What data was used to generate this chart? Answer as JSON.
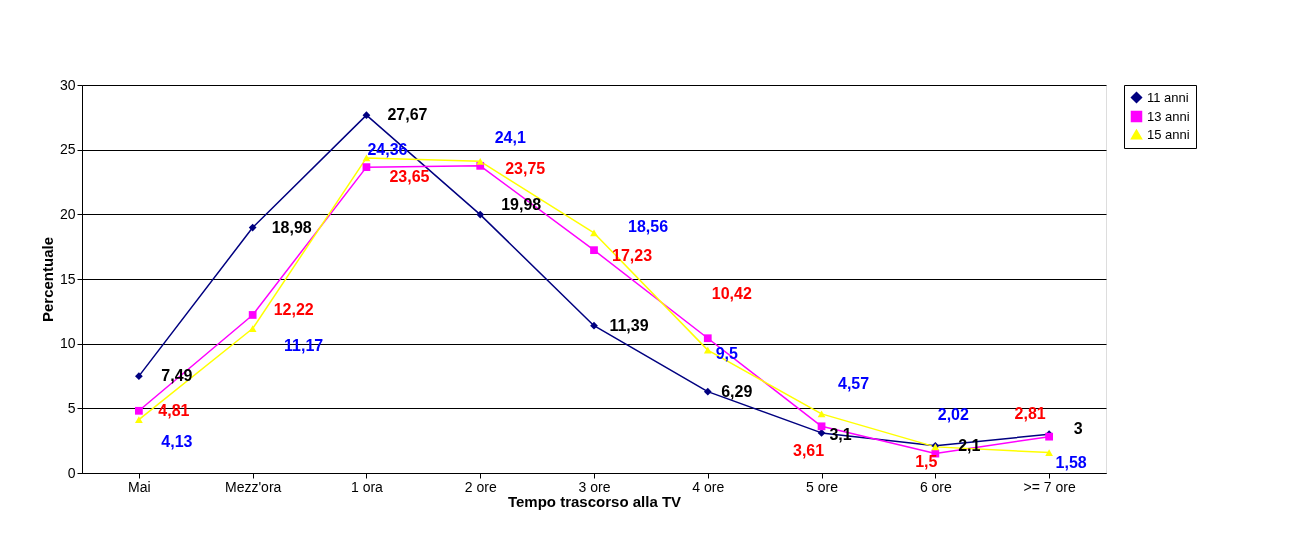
{
  "chart_data": {
    "type": "line",
    "xlabel": "Tempo trascorso alla TV",
    "ylabel": "Percentuale",
    "categories": [
      "Mai",
      "Mezz'ora",
      "1 ora",
      "2 ore",
      "3 ore",
      "4 ore",
      "5 ore",
      "6 ore",
      ">= 7 ore"
    ],
    "series": [
      {
        "name": "11 anni",
        "color": "#000080",
        "marker": "diamond",
        "values": [
          7.49,
          18.98,
          27.67,
          19.98,
          11.39,
          6.29,
          3.1,
          2.1,
          3
        ],
        "value_labels": [
          "7,49",
          "18,98",
          "27,67",
          "19,98",
          "11,39",
          "6,29",
          "3,1",
          "2,1",
          "3"
        ]
      },
      {
        "name": "13 anni",
        "color": "#ff00ff",
        "marker": "square",
        "values": [
          4.81,
          12.22,
          23.65,
          23.75,
          17.23,
          10.42,
          3.61,
          1.5,
          2.81
        ],
        "value_labels": [
          "4,81",
          "12,22",
          "23,65",
          "23,75",
          "17,23",
          "10,42",
          "3,61",
          "1,5",
          "2,81"
        ]
      },
      {
        "name": "15 anni",
        "color": "#ffff00",
        "marker": "triangle",
        "values": [
          4.13,
          11.17,
          24.36,
          24.1,
          18.56,
          9.5,
          4.57,
          2.02,
          1.58
        ],
        "value_labels": [
          "4,13",
          "11,17",
          "24,36",
          "24,1",
          "18,56",
          "9,5",
          "4,57",
          "2,02",
          "1,58"
        ]
      }
    ],
    "ylim": [
      0,
      30
    ],
    "yticks": [
      0,
      5,
      10,
      15,
      20,
      25,
      30
    ],
    "grid": "y",
    "legend": "right"
  }
}
